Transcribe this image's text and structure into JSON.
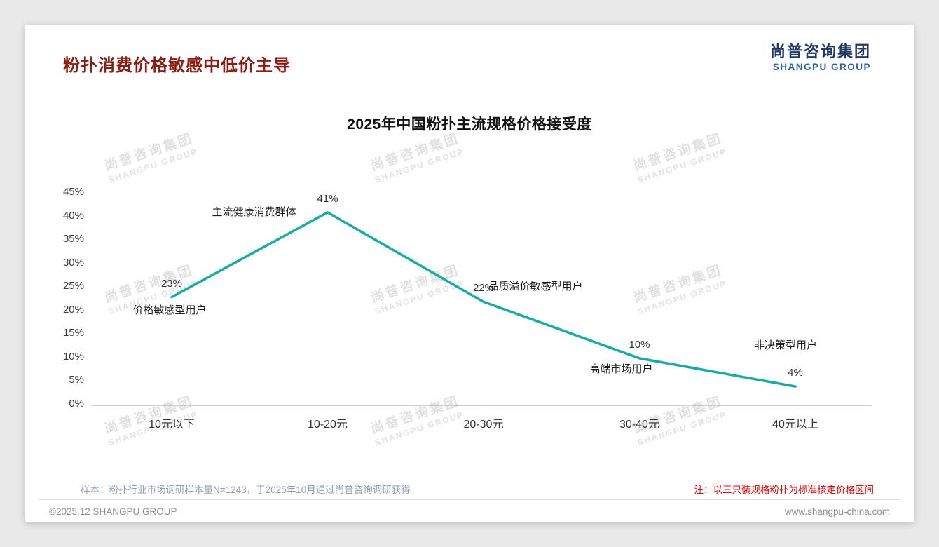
{
  "page": {
    "title": "粉扑消费价格敏感中低价主导",
    "logo": {
      "cn": "尚普咨询集团",
      "en": "SHANGPU GROUP"
    },
    "watermark": {
      "line1": "尚普咨询集团",
      "line2": "SHANGPU GROUP"
    },
    "footnote_sample": "样本：粉扑行业市场调研样本量N=1243，于2025年10月通过尚普咨询调研获得",
    "footnote_note": "注：以三只装规格粉扑为标准核定价格区间",
    "footer_left": "©2025.12 SHANGPU GROUP",
    "footer_right": "www.shangpu-china.com"
  },
  "chart_data": {
    "type": "line",
    "title": "2025年中国粉扑主流规格价格接受度",
    "categories": [
      "10元以下",
      "10-20元",
      "20-30元",
      "30-40元",
      "40元以上"
    ],
    "values": [
      23,
      41,
      22,
      10,
      4
    ],
    "value_labels": [
      "23%",
      "41%",
      "22%",
      "10%",
      "4%"
    ],
    "annotations": [
      "价格敏感型用户",
      "主流健康消费群体",
      "品质溢价敏感型用户",
      "高端市场用户",
      "非决策型用户"
    ],
    "xlabel": "",
    "ylabel": "",
    "ylim": [
      0,
      45
    ],
    "ytick_step": 5,
    "ytick_labels": [
      "0%",
      "5%",
      "10%",
      "15%",
      "20%",
      "25%",
      "30%",
      "35%",
      "40%",
      "45%"
    ],
    "line_color": "#17ada4",
    "axis_color": "#b3b3b3",
    "grid": false,
    "legend": false
  }
}
